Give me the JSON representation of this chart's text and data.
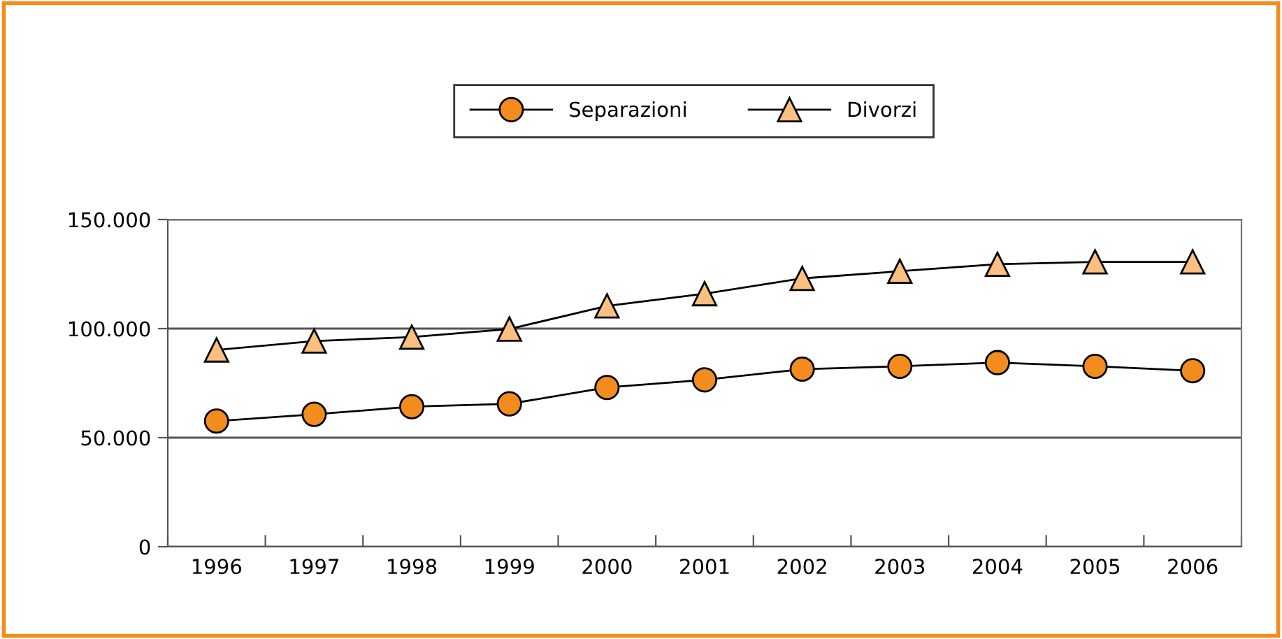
{
  "chart_data": {
    "type": "line",
    "categories": [
      "1996",
      "1997",
      "1998",
      "1999",
      "2000",
      "2001",
      "2002",
      "2003",
      "2004",
      "2005",
      "2006"
    ],
    "series": [
      {
        "name": "Separazioni",
        "color": "#f28c1e",
        "marker": "circle",
        "values": [
          57600,
          60700,
          64200,
          65500,
          73000,
          76500,
          81400,
          82700,
          84400,
          82700,
          80700
        ]
      },
      {
        "name": "Divorzi",
        "color": "#fbbf80",
        "marker": "triangle",
        "values": [
          90200,
          94300,
          96100,
          99800,
          110400,
          116000,
          123000,
          126300,
          129500,
          130600,
          130600
        ]
      }
    ],
    "ylim": [
      0,
      150000
    ],
    "yticks": [
      {
        "value": 0,
        "label": "0"
      },
      {
        "value": 50000,
        "label": "50.000"
      },
      {
        "value": 100000,
        "label": "100.000"
      },
      {
        "value": 150000,
        "label": "150.000"
      }
    ],
    "grid": "y",
    "legend": "top",
    "line_style": "solid"
  }
}
